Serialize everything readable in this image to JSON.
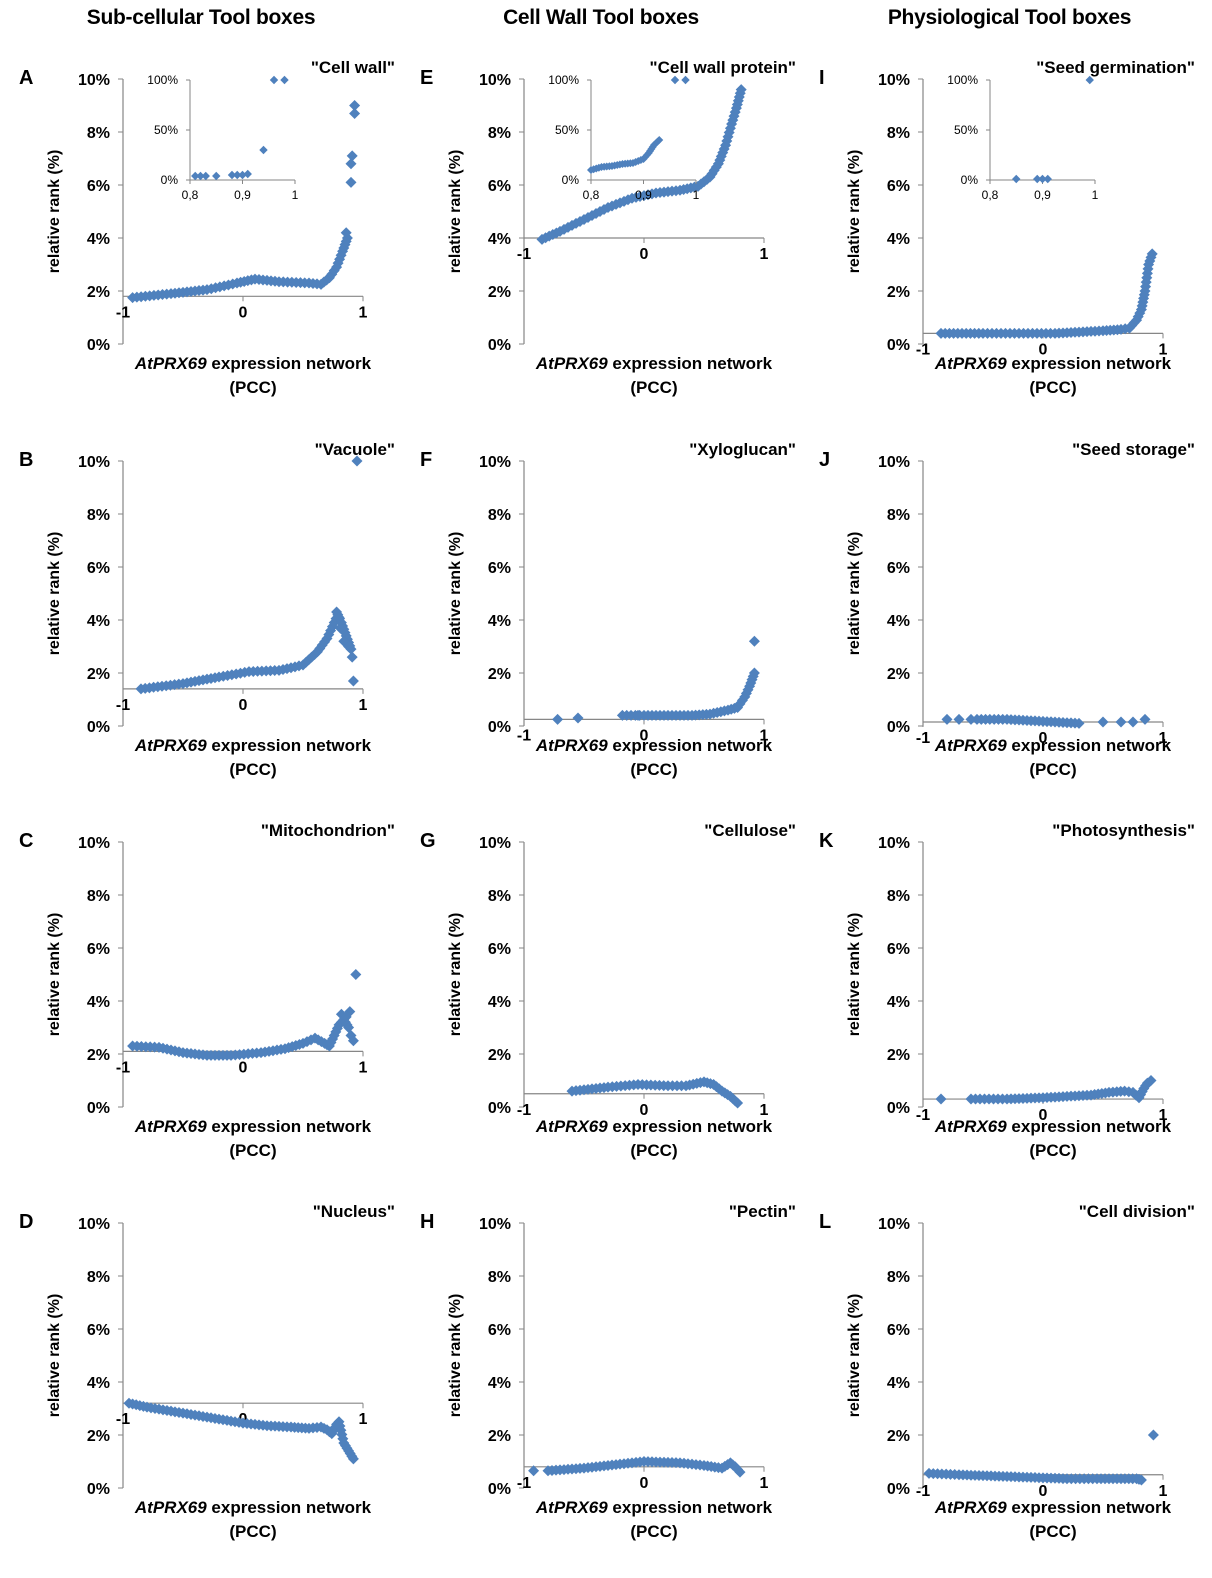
{
  "columns": [
    {
      "title": "Sub-cellular Tool boxes",
      "bg": "#d7e3bf"
    },
    {
      "title": "Cell Wall Tool boxes",
      "bg": "#d3e7ef"
    },
    {
      "title": "Physiological Tool boxes",
      "bg": "#f2d9d8"
    }
  ],
  "common": {
    "xlabel_gene": "AtPRX69",
    "xlabel_rest": " expression network",
    "xlabel_line2": "(PCC)",
    "ylabel": "relative rank (%)",
    "marker_color": "#4f81bd",
    "axis_color": "#868686"
  },
  "chart_data": [
    {
      "type": "scatter",
      "panel": "A",
      "title": "\"Cell wall\"",
      "xlim": [
        -1,
        1
      ],
      "ylim": [
        0,
        10
      ],
      "yticks": [
        "0%",
        "2%",
        "4%",
        "6%",
        "8%",
        "10%"
      ],
      "xticks": [
        "-1",
        "0",
        "1"
      ],
      "x_axis_at": 1.8,
      "curve": [
        [
          -0.92,
          1.75
        ],
        [
          -0.6,
          1.9
        ],
        [
          -0.3,
          2.05
        ],
        [
          -0.05,
          2.3
        ],
        [
          0.1,
          2.45
        ],
        [
          0.3,
          2.35
        ],
        [
          0.55,
          2.3
        ],
        [
          0.65,
          2.25
        ],
        [
          0.72,
          2.5
        ],
        [
          0.78,
          2.9
        ],
        [
          0.83,
          3.5
        ],
        [
          0.87,
          4.0
        ]
      ],
      "points": [
        [
          0.86,
          4.2
        ],
        [
          0.9,
          6.1
        ],
        [
          0.9,
          6.8
        ],
        [
          0.91,
          7.1
        ],
        [
          0.93,
          8.7
        ],
        [
          0.93,
          9.0
        ]
      ],
      "inset": {
        "xlim": [
          0.8,
          1.0
        ],
        "ylim": [
          0,
          100
        ],
        "xticks": [
          "0,8",
          "0,9",
          "1"
        ],
        "yticks": [
          "0%",
          "50%",
          "100%"
        ],
        "points": [
          [
            0.81,
            4
          ],
          [
            0.82,
            4
          ],
          [
            0.83,
            4
          ],
          [
            0.85,
            4
          ],
          [
            0.88,
            5
          ],
          [
            0.89,
            5
          ],
          [
            0.9,
            5
          ],
          [
            0.91,
            6
          ],
          [
            0.94,
            30
          ],
          [
            0.96,
            100
          ],
          [
            0.98,
            100
          ]
        ]
      }
    },
    {
      "type": "scatter",
      "panel": "B",
      "title": "\"Vacuole\"",
      "xlim": [
        -1,
        1
      ],
      "ylim": [
        0,
        10
      ],
      "yticks": [
        "0%",
        "2%",
        "4%",
        "6%",
        "8%",
        "10%"
      ],
      "xticks": [
        "-1",
        "0",
        "1"
      ],
      "x_axis_at": 1.4,
      "curve": [
        [
          -0.85,
          1.4
        ],
        [
          -0.5,
          1.6
        ],
        [
          -0.2,
          1.85
        ],
        [
          0.05,
          2.05
        ],
        [
          0.3,
          2.1
        ],
        [
          0.5,
          2.3
        ],
        [
          0.62,
          2.8
        ],
        [
          0.7,
          3.3
        ],
        [
          0.76,
          3.9
        ],
        [
          0.79,
          4.2
        ],
        [
          0.82,
          3.9
        ],
        [
          0.86,
          3.4
        ],
        [
          0.9,
          2.9
        ]
      ],
      "points": [
        [
          0.78,
          4.3
        ],
        [
          0.8,
          4.1
        ],
        [
          0.81,
          3.7
        ],
        [
          0.84,
          3.2
        ],
        [
          0.88,
          3.0
        ],
        [
          0.91,
          2.6
        ],
        [
          0.92,
          1.7
        ],
        [
          0.95,
          10.0
        ]
      ]
    },
    {
      "type": "scatter",
      "panel": "C",
      "title": "\"Mitochondrion\"",
      "xlim": [
        -1,
        1
      ],
      "ylim": [
        0,
        10
      ],
      "yticks": [
        "0%",
        "2%",
        "4%",
        "6%",
        "8%",
        "10%"
      ],
      "xticks": [
        "-1",
        "0",
        "1"
      ],
      "x_axis_at": 2.1,
      "curve": [
        [
          -0.92,
          2.3
        ],
        [
          -0.7,
          2.25
        ],
        [
          -0.5,
          2.05
        ],
        [
          -0.3,
          1.95
        ],
        [
          -0.1,
          1.95
        ],
        [
          0.15,
          2.05
        ],
        [
          0.35,
          2.2
        ],
        [
          0.5,
          2.4
        ],
        [
          0.6,
          2.6
        ],
        [
          0.68,
          2.4
        ],
        [
          0.72,
          2.3
        ],
        [
          0.76,
          2.7
        ],
        [
          0.8,
          3.1
        ],
        [
          0.84,
          3.3
        ],
        [
          0.88,
          3.0
        ]
      ],
      "points": [
        [
          0.82,
          3.5
        ],
        [
          0.86,
          3.4
        ],
        [
          0.89,
          3.6
        ],
        [
          0.9,
          2.7
        ],
        [
          0.92,
          2.5
        ],
        [
          0.94,
          5.0
        ]
      ]
    },
    {
      "type": "scatter",
      "panel": "D",
      "title": "\"Nucleus\"",
      "xlim": [
        -1,
        1
      ],
      "ylim": [
        0,
        10
      ],
      "yticks": [
        "0%",
        "2%",
        "4%",
        "6%",
        "8%",
        "10%"
      ],
      "xticks": [
        "-1",
        "0",
        "1"
      ],
      "x_axis_at": 3.2,
      "curve": [
        [
          -0.95,
          3.2
        ],
        [
          -0.8,
          3.05
        ],
        [
          -0.6,
          2.9
        ],
        [
          -0.4,
          2.75
        ],
        [
          -0.2,
          2.6
        ],
        [
          0.0,
          2.45
        ],
        [
          0.2,
          2.35
        ],
        [
          0.4,
          2.3
        ],
        [
          0.55,
          2.25
        ],
        [
          0.65,
          2.3
        ],
        [
          0.7,
          2.2
        ],
        [
          0.74,
          2.05
        ],
        [
          0.78,
          2.4
        ],
        [
          0.8,
          2.5
        ],
        [
          0.84,
          1.7
        ],
        [
          0.88,
          1.4
        ],
        [
          0.92,
          1.1
        ]
      ],
      "points": []
    },
    {
      "type": "scatter",
      "panel": "E",
      "title": "\"Cell wall protein\"",
      "xlim": [
        -1,
        1
      ],
      "ylim": [
        0,
        10
      ],
      "yticks": [
        "0%",
        "2%",
        "4%",
        "6%",
        "8%",
        "10%"
      ],
      "xticks": [
        "-1",
        "0",
        "1"
      ],
      "x_axis_at": 4.0,
      "curve": [
        [
          -0.85,
          3.95
        ],
        [
          -0.7,
          4.25
        ],
        [
          -0.5,
          4.7
        ],
        [
          -0.3,
          5.15
        ],
        [
          -0.1,
          5.5
        ],
        [
          0.1,
          5.7
        ],
        [
          0.3,
          5.8
        ],
        [
          0.45,
          5.95
        ],
        [
          0.55,
          6.3
        ],
        [
          0.62,
          6.8
        ],
        [
          0.68,
          7.5
        ],
        [
          0.73,
          8.3
        ],
        [
          0.77,
          8.9
        ],
        [
          0.81,
          9.6
        ]
      ],
      "points": [],
      "inset": {
        "xlim": [
          0.8,
          1.0
        ],
        "ylim": [
          0,
          100
        ],
        "xticks": [
          "0,8",
          "0,9",
          "1"
        ],
        "yticks": [
          "0%",
          "50%",
          "100%"
        ],
        "curve": [
          [
            0.8,
            10
          ],
          [
            0.82,
            13
          ],
          [
            0.84,
            14
          ],
          [
            0.86,
            16
          ],
          [
            0.88,
            17
          ],
          [
            0.9,
            21
          ],
          [
            0.91,
            27
          ],
          [
            0.92,
            35
          ],
          [
            0.93,
            40
          ]
        ],
        "points": [
          [
            0.96,
            100
          ],
          [
            0.98,
            100
          ]
        ]
      }
    },
    {
      "type": "scatter",
      "panel": "F",
      "title": "\"Xyloglucan\"",
      "xlim": [
        -1,
        1
      ],
      "ylim": [
        0,
        10
      ],
      "yticks": [
        "0%",
        "2%",
        "4%",
        "6%",
        "8%",
        "10%"
      ],
      "xticks": [
        "-1",
        "0",
        "1"
      ],
      "x_axis_at": 0.25,
      "curve": [
        [
          -0.18,
          0.4
        ],
        [
          0.0,
          0.4
        ],
        [
          0.2,
          0.4
        ],
        [
          0.4,
          0.4
        ],
        [
          0.55,
          0.45
        ],
        [
          0.7,
          0.6
        ],
        [
          0.78,
          0.7
        ],
        [
          0.84,
          1.1
        ],
        [
          0.88,
          1.5
        ],
        [
          0.92,
          2.0
        ]
      ],
      "points": [
        [
          -0.72,
          0.25
        ],
        [
          -0.55,
          0.3
        ],
        [
          -0.05,
          0.4
        ],
        [
          0.92,
          3.2
        ]
      ]
    },
    {
      "type": "scatter",
      "panel": "G",
      "title": "\"Cellulose\"",
      "xlim": [
        -1,
        1
      ],
      "ylim": [
        0,
        10
      ],
      "yticks": [
        "0%",
        "2%",
        "4%",
        "6%",
        "8%",
        "10%"
      ],
      "xticks": [
        "-1",
        "0",
        "1"
      ],
      "x_axis_at": 0.5,
      "curve": [
        [
          -0.6,
          0.6
        ],
        [
          -0.3,
          0.75
        ],
        [
          -0.05,
          0.85
        ],
        [
          0.2,
          0.8
        ],
        [
          0.35,
          0.8
        ],
        [
          0.5,
          0.95
        ],
        [
          0.58,
          0.85
        ],
        [
          0.65,
          0.6
        ],
        [
          0.72,
          0.4
        ],
        [
          0.78,
          0.15
        ]
      ],
      "points": []
    },
    {
      "type": "scatter",
      "panel": "H",
      "title": "\"Pectin\"",
      "xlim": [
        -1,
        1
      ],
      "ylim": [
        0,
        10
      ],
      "yticks": [
        "0%",
        "2%",
        "4%",
        "6%",
        "8%",
        "10%"
      ],
      "xticks": [
        "-1",
        "0",
        "1"
      ],
      "x_axis_at": 0.8,
      "curve": [
        [
          -0.8,
          0.65
        ],
        [
          -0.5,
          0.75
        ],
        [
          -0.2,
          0.9
        ],
        [
          0.0,
          1.0
        ],
        [
          0.3,
          0.95
        ],
        [
          0.5,
          0.85
        ],
        [
          0.65,
          0.75
        ],
        [
          0.72,
          0.95
        ],
        [
          0.76,
          0.8
        ],
        [
          0.8,
          0.6
        ]
      ],
      "points": [
        [
          -0.92,
          0.65
        ]
      ]
    },
    {
      "type": "scatter",
      "panel": "I",
      "title": "\"Seed germination\"",
      "xlim": [
        -1,
        1
      ],
      "ylim": [
        0,
        10
      ],
      "yticks": [
        "0%",
        "2%",
        "4%",
        "6%",
        "8%",
        "10%"
      ],
      "xticks": [
        "-1",
        "0",
        "1"
      ],
      "x_axis_at": 0.4,
      "curve": [
        [
          -0.85,
          0.4
        ],
        [
          -0.5,
          0.4
        ],
        [
          -0.2,
          0.4
        ],
        [
          0.1,
          0.4
        ],
        [
          0.3,
          0.45
        ],
        [
          0.5,
          0.5
        ],
        [
          0.65,
          0.55
        ],
        [
          0.72,
          0.6
        ],
        [
          0.78,
          0.9
        ],
        [
          0.82,
          1.3
        ],
        [
          0.85,
          2.0
        ],
        [
          0.88,
          3.0
        ],
        [
          0.91,
          3.4
        ]
      ],
      "points": [],
      "inset": {
        "xlim": [
          0.8,
          1.0
        ],
        "ylim": [
          0,
          100
        ],
        "xticks": [
          "0,8",
          "0,9",
          "1"
        ],
        "yticks": [
          "0%",
          "50%",
          "100%"
        ],
        "points": [
          [
            0.85,
            1
          ],
          [
            0.89,
            1
          ],
          [
            0.9,
            1
          ],
          [
            0.91,
            1
          ],
          [
            0.99,
            100
          ]
        ]
      }
    },
    {
      "type": "scatter",
      "panel": "J",
      "title": "\"Seed storage\"",
      "xlim": [
        -1,
        1
      ],
      "ylim": [
        0,
        10
      ],
      "yticks": [
        "0%",
        "2%",
        "4%",
        "6%",
        "8%",
        "10%"
      ],
      "xticks": [
        "-1",
        "0",
        "1"
      ],
      "x_axis_at": 0.15,
      "curve": [
        [
          -0.55,
          0.25
        ],
        [
          -0.3,
          0.25
        ],
        [
          -0.1,
          0.2
        ],
        [
          0.1,
          0.15
        ],
        [
          0.3,
          0.1
        ]
      ],
      "points": [
        [
          -0.8,
          0.25
        ],
        [
          -0.7,
          0.25
        ],
        [
          -0.6,
          0.25
        ],
        [
          0.5,
          0.15
        ],
        [
          0.65,
          0.15
        ],
        [
          0.75,
          0.15
        ],
        [
          0.85,
          0.25
        ]
      ]
    },
    {
      "type": "scatter",
      "panel": "K",
      "title": "\"Photosynthesis\"",
      "xlim": [
        -1,
        1
      ],
      "ylim": [
        0,
        10
      ],
      "yticks": [
        "0%",
        "2%",
        "4%",
        "6%",
        "8%",
        "10%"
      ],
      "xticks": [
        "-1",
        "0",
        "1"
      ],
      "x_axis_at": 0.3,
      "curve": [
        [
          -0.6,
          0.3
        ],
        [
          -0.3,
          0.3
        ],
        [
          0.0,
          0.35
        ],
        [
          0.2,
          0.4
        ],
        [
          0.4,
          0.45
        ],
        [
          0.55,
          0.55
        ],
        [
          0.68,
          0.6
        ],
        [
          0.75,
          0.55
        ],
        [
          0.8,
          0.35
        ],
        [
          0.84,
          0.7
        ],
        [
          0.87,
          0.9
        ],
        [
          0.9,
          1.0
        ]
      ],
      "points": [
        [
          -0.85,
          0.3
        ]
      ]
    },
    {
      "type": "scatter",
      "panel": "L",
      "title": "\"Cell division\"",
      "xlim": [
        -1,
        1
      ],
      "ylim": [
        0,
        10
      ],
      "yticks": [
        "0%",
        "2%",
        "4%",
        "6%",
        "8%",
        "10%"
      ],
      "xticks": [
        "-1",
        "0",
        "1"
      ],
      "x_axis_at": 0.5,
      "curve": [
        [
          -0.95,
          0.55
        ],
        [
          -0.7,
          0.5
        ],
        [
          -0.4,
          0.45
        ],
        [
          -0.1,
          0.4
        ],
        [
          0.2,
          0.35
        ],
        [
          0.45,
          0.35
        ],
        [
          0.65,
          0.35
        ],
        [
          0.78,
          0.35
        ],
        [
          0.82,
          0.3
        ]
      ],
      "points": [
        [
          0.92,
          2.0
        ]
      ]
    }
  ]
}
